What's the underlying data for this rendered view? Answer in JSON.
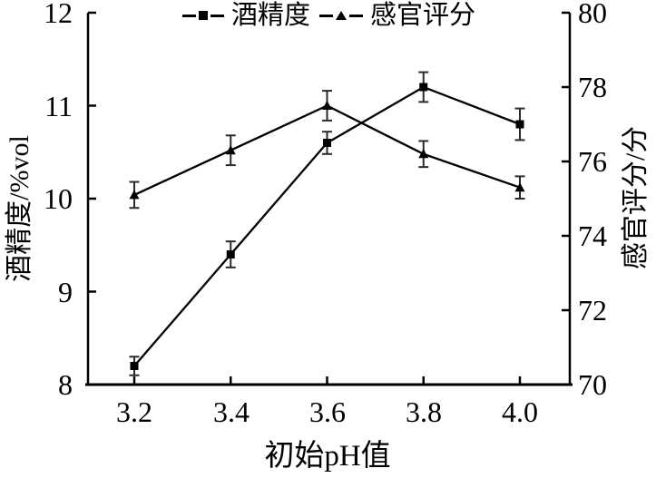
{
  "chart_data": {
    "type": "line",
    "title": "",
    "xlabel": "初始pH值",
    "x": [
      3.2,
      3.4,
      3.6,
      3.8,
      4.0
    ],
    "x_tick_labels": [
      "3.2",
      "3.4",
      "3.6",
      "3.8",
      "4.0"
    ],
    "left_axis": {
      "label": "酒精度/%vol",
      "range": [
        8,
        12
      ],
      "ticks": [
        8,
        9,
        10,
        11,
        12
      ],
      "tick_labels": [
        "8",
        "9",
        "10",
        "11",
        "12"
      ]
    },
    "right_axis": {
      "label": "感官评分/分",
      "range": [
        70,
        80
      ],
      "ticks": [
        70,
        72,
        74,
        76,
        78,
        80
      ],
      "tick_labels": [
        "70",
        "72",
        "74",
        "76",
        "78",
        "80"
      ]
    },
    "series": [
      {
        "name": "酒精度",
        "axis": "left",
        "marker": "square",
        "values": [
          8.2,
          9.4,
          10.6,
          11.2,
          10.8
        ],
        "errors": [
          0.1,
          0.14,
          0.12,
          0.16,
          0.17
        ]
      },
      {
        "name": "感官评分",
        "axis": "right",
        "marker": "triangle",
        "values": [
          75.1,
          76.3,
          77.5,
          76.2,
          75.3
        ],
        "errors": [
          0.35,
          0.4,
          0.4,
          0.35,
          0.3
        ]
      }
    ],
    "legend": {
      "position": "top-center",
      "entries": [
        "酒精度",
        "感官评分"
      ]
    },
    "grid": false,
    "colors": {
      "line": "#000000",
      "marker": "#000000",
      "error_bar": "#2b2b2b",
      "text": "#000000",
      "background": "#ffffff"
    }
  }
}
